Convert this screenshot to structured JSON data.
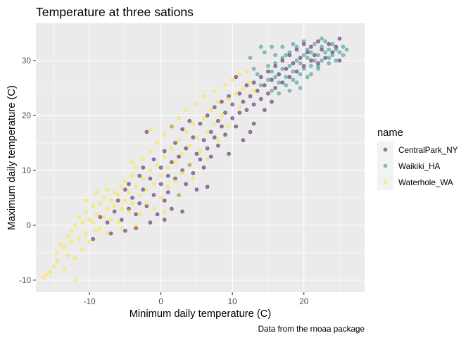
{
  "chart_data": {
    "type": "scatter",
    "title": "Temperature at three sations",
    "xlabel": "Minimum daily temperature (C)",
    "ylabel": "Maximum daily temperature (C)",
    "caption": "Data from the rnoaa package",
    "xlim": [
      -17.5,
      28.5
    ],
    "ylim": [
      -12.2,
      36.8
    ],
    "x_ticks": [
      -10,
      0,
      10,
      20
    ],
    "y_ticks": [
      -10,
      0,
      10,
      20,
      30
    ],
    "grid": true,
    "point_alpha": 0.5,
    "legend": {
      "title": "name",
      "position": "right"
    },
    "series": [
      {
        "name": "CentralPark_NY",
        "color": "#440154",
        "points": [
          [
            -9.5,
            -2.5
          ],
          [
            -8.5,
            1.5
          ],
          [
            -7.5,
            0.5
          ],
          [
            -6.5,
            2.5
          ],
          [
            -6.0,
            4.5
          ],
          [
            -5.5,
            1.0
          ],
          [
            -5.0,
            6.5
          ],
          [
            -4.5,
            3.0
          ],
          [
            -4.5,
            7.5
          ],
          [
            -4.0,
            5.0
          ],
          [
            -3.5,
            2.0
          ],
          [
            -3.0,
            9.0
          ],
          [
            -3.0,
            4.0
          ],
          [
            -2.5,
            6.5
          ],
          [
            -2.0,
            17.0
          ],
          [
            -2.0,
            3.5
          ],
          [
            -1.5,
            8.5
          ],
          [
            -1.0,
            5.5
          ],
          [
            -1.0,
            12.0
          ],
          [
            -0.5,
            2.0
          ],
          [
            0.0,
            7.5
          ],
          [
            0.0,
            10.5
          ],
          [
            0.5,
            4.5
          ],
          [
            0.5,
            13.5
          ],
          [
            1.0,
            9.0
          ],
          [
            1.0,
            6.0
          ],
          [
            1.5,
            11.5
          ],
          [
            1.5,
            3.0
          ],
          [
            2.0,
            8.5
          ],
          [
            2.0,
            15.0
          ],
          [
            2.5,
            5.5
          ],
          [
            2.5,
            12.5
          ],
          [
            3.0,
            10.0
          ],
          [
            3.0,
            17.5
          ],
          [
            3.5,
            7.5
          ],
          [
            3.5,
            14.0
          ],
          [
            4.0,
            11.0
          ],
          [
            4.0,
            19.0
          ],
          [
            4.5,
            9.5
          ],
          [
            4.5,
            16.0
          ],
          [
            5.0,
            13.0
          ],
          [
            5.0,
            6.5
          ],
          [
            5.5,
            18.5
          ],
          [
            5.5,
            12.0
          ],
          [
            6.0,
            15.5
          ],
          [
            6.0,
            10.5
          ],
          [
            6.5,
            20.0
          ],
          [
            6.5,
            14.0
          ],
          [
            7.0,
            17.0
          ],
          [
            7.0,
            12.5
          ],
          [
            7.5,
            21.5
          ],
          [
            7.5,
            16.0
          ],
          [
            8.0,
            19.0
          ],
          [
            8.0,
            14.5
          ],
          [
            8.5,
            22.5
          ],
          [
            8.5,
            18.0
          ],
          [
            9.0,
            20.5
          ],
          [
            9.0,
            16.5
          ],
          [
            9.5,
            23.5
          ],
          [
            10.0,
            19.5
          ],
          [
            10.0,
            22.0
          ],
          [
            10.5,
            18.0
          ],
          [
            11.0,
            24.0
          ],
          [
            11.0,
            20.5
          ],
          [
            11.5,
            22.5
          ],
          [
            12.0,
            25.5
          ],
          [
            12.0,
            21.0
          ],
          [
            12.5,
            23.5
          ],
          [
            13.0,
            26.0
          ],
          [
            13.0,
            22.0
          ],
          [
            13.5,
            24.5
          ],
          [
            14.0,
            27.0
          ],
          [
            14.0,
            23.0
          ],
          [
            14.5,
            25.5
          ],
          [
            15.0,
            28.0
          ],
          [
            15.0,
            24.0
          ],
          [
            15.5,
            26.5
          ],
          [
            16.0,
            29.0
          ],
          [
            16.0,
            25.0
          ],
          [
            16.5,
            27.5
          ],
          [
            17.0,
            30.0
          ],
          [
            17.0,
            26.0
          ],
          [
            17.5,
            28.5
          ],
          [
            18.0,
            31.0
          ],
          [
            18.0,
            27.0
          ],
          [
            18.5,
            29.5
          ],
          [
            19.0,
            32.0
          ],
          [
            19.0,
            28.0
          ],
          [
            19.5,
            30.5
          ],
          [
            20.0,
            33.0
          ],
          [
            20.0,
            29.0
          ],
          [
            20.5,
            31.5
          ],
          [
            21.0,
            32.5
          ],
          [
            21.0,
            30.0
          ],
          [
            21.5,
            31.0
          ],
          [
            22.0,
            33.5
          ],
          [
            22.0,
            29.5
          ],
          [
            22.5,
            32.0
          ],
          [
            23.0,
            30.5
          ],
          [
            23.5,
            33.0
          ],
          [
            24.0,
            31.5
          ],
          [
            24.5,
            32.5
          ],
          [
            25.0,
            34.0
          ],
          [
            25.0,
            30.0
          ],
          [
            -1.5,
            0.5
          ],
          [
            -3.5,
            -0.5
          ],
          [
            -5.0,
            -1.0
          ],
          [
            0.5,
            1.0
          ],
          [
            -2.5,
            10.5
          ],
          [
            -7.0,
            -1.5
          ],
          [
            1.5,
            18.0
          ],
          [
            3.0,
            2.5
          ],
          [
            6.5,
            7.0
          ],
          [
            9.5,
            13.0
          ],
          [
            11.5,
            15.5
          ],
          [
            13.0,
            18.5
          ],
          [
            12.5,
            17.0
          ],
          [
            10.5,
            27.0
          ],
          [
            14.5,
            21.0
          ],
          [
            15.5,
            22.5
          ]
        ]
      },
      {
        "name": "Waikiki_HA",
        "color": "#21908C",
        "points": [
          [
            12.5,
            30.5
          ],
          [
            13.5,
            27.5
          ],
          [
            14.0,
            25.5
          ],
          [
            14.5,
            31.5
          ],
          [
            15.0,
            26.5
          ],
          [
            15.5,
            24.5
          ],
          [
            15.5,
            28.0
          ],
          [
            16.0,
            29.5
          ],
          [
            16.0,
            31.0
          ],
          [
            16.5,
            26.0
          ],
          [
            16.5,
            27.5
          ],
          [
            17.0,
            28.5
          ],
          [
            17.0,
            30.5
          ],
          [
            17.5,
            25.5
          ],
          [
            17.5,
            27.0
          ],
          [
            18.0,
            29.0
          ],
          [
            18.0,
            31.5
          ],
          [
            18.5,
            26.5
          ],
          [
            18.5,
            28.0
          ],
          [
            19.0,
            30.0
          ],
          [
            19.0,
            32.5
          ],
          [
            19.5,
            27.5
          ],
          [
            19.5,
            29.5
          ],
          [
            20.0,
            31.0
          ],
          [
            20.0,
            28.5
          ],
          [
            20.5,
            30.5
          ],
          [
            20.5,
            32.0
          ],
          [
            21.0,
            29.0
          ],
          [
            21.0,
            31.5
          ],
          [
            21.5,
            30.0
          ],
          [
            21.5,
            33.0
          ],
          [
            22.0,
            31.0
          ],
          [
            22.0,
            28.5
          ],
          [
            22.5,
            32.5
          ],
          [
            22.5,
            30.0
          ],
          [
            23.0,
            31.5
          ],
          [
            23.0,
            33.5
          ],
          [
            23.5,
            30.5
          ],
          [
            23.5,
            32.0
          ],
          [
            24.0,
            31.0
          ],
          [
            24.0,
            33.0
          ],
          [
            24.5,
            32.0
          ],
          [
            25.0,
            31.5
          ],
          [
            25.5,
            32.5
          ],
          [
            25.5,
            31.0
          ],
          [
            26.0,
            32.0
          ],
          [
            14.0,
            32.5
          ],
          [
            15.5,
            32.5
          ],
          [
            17.0,
            32.5
          ],
          [
            18.5,
            33.0
          ],
          [
            16.5,
            24.0
          ],
          [
            19.0,
            26.0
          ],
          [
            20.5,
            27.0
          ],
          [
            22.0,
            29.0
          ],
          [
            23.5,
            29.5
          ],
          [
            18.0,
            24.5
          ],
          [
            19.5,
            25.0
          ],
          [
            21.0,
            27.5
          ],
          [
            24.5,
            30.0
          ],
          [
            20.0,
            33.5
          ],
          [
            22.5,
            34.0
          ],
          [
            17.5,
            31.0
          ],
          [
            15.0,
            29.0
          ],
          [
            16.0,
            27.0
          ],
          [
            13.0,
            28.5
          ]
        ]
      },
      {
        "name": "Waterhole_WA",
        "color": "#FDE725",
        "points": [
          [
            -16.5,
            -9.5
          ],
          [
            -16.0,
            -9.0
          ],
          [
            -15.0,
            -7.5
          ],
          [
            -14.5,
            -5.0
          ],
          [
            -14.5,
            -6.5
          ],
          [
            -14.0,
            -3.5
          ],
          [
            -13.5,
            -4.0
          ],
          [
            -13.0,
            -2.0
          ],
          [
            -13.0,
            -5.5
          ],
          [
            -12.5,
            -1.0
          ],
          [
            -12.5,
            -3.0
          ],
          [
            -12.0,
            0.0
          ],
          [
            -12.0,
            -6.0
          ],
          [
            -11.5,
            -2.5
          ],
          [
            -11.5,
            1.5
          ],
          [
            -11.0,
            -4.5
          ],
          [
            -11.0,
            0.5
          ],
          [
            -10.5,
            -1.5
          ],
          [
            -10.5,
            2.5
          ],
          [
            -10.0,
            -3.0
          ],
          [
            -10.0,
            1.0
          ],
          [
            -9.5,
            0.5
          ],
          [
            -9.5,
            3.5
          ],
          [
            -9.0,
            -1.0
          ],
          [
            -9.0,
            2.0
          ],
          [
            -8.5,
            4.0
          ],
          [
            -8.5,
            -0.5
          ],
          [
            -8.0,
            1.5
          ],
          [
            -8.0,
            5.0
          ],
          [
            -7.5,
            3.0
          ],
          [
            -7.5,
            -1.5
          ],
          [
            -7.0,
            4.5
          ],
          [
            -7.0,
            1.0
          ],
          [
            -6.5,
            6.0
          ],
          [
            -6.5,
            3.5
          ],
          [
            -6.0,
            0.5
          ],
          [
            -6.0,
            5.5
          ],
          [
            -5.5,
            7.0
          ],
          [
            -5.5,
            3.0
          ],
          [
            -5.0,
            4.5
          ],
          [
            -5.0,
            8.0
          ],
          [
            -4.5,
            2.5
          ],
          [
            -4.5,
            6.0
          ],
          [
            -4.0,
            9.0
          ],
          [
            -4.0,
            4.0
          ],
          [
            -3.5,
            7.0
          ],
          [
            -3.5,
            10.5
          ],
          [
            -3.0,
            5.5
          ],
          [
            -3.0,
            2.0
          ],
          [
            -2.5,
            8.5
          ],
          [
            -2.5,
            12.0
          ],
          [
            -2.0,
            6.5
          ],
          [
            -2.0,
            4.0
          ],
          [
            -1.5,
            10.0
          ],
          [
            -1.5,
            13.5
          ],
          [
            -1.0,
            7.5
          ],
          [
            -1.0,
            3.0
          ],
          [
            -0.5,
            11.0
          ],
          [
            -0.5,
            15.0
          ],
          [
            0.0,
            9.0
          ],
          [
            0.0,
            5.0
          ],
          [
            0.5,
            12.5
          ],
          [
            0.5,
            16.5
          ],
          [
            1.0,
            10.5
          ],
          [
            1.0,
            7.0
          ],
          [
            1.5,
            14.0
          ],
          [
            1.5,
            18.0
          ],
          [
            2.0,
            11.5
          ],
          [
            2.0,
            8.0
          ],
          [
            2.5,
            15.5
          ],
          [
            2.5,
            19.5
          ],
          [
            3.0,
            13.0
          ],
          [
            3.0,
            9.5
          ],
          [
            3.5,
            17.0
          ],
          [
            3.5,
            21.0
          ],
          [
            4.0,
            14.5
          ],
          [
            4.0,
            11.0
          ],
          [
            4.5,
            18.5
          ],
          [
            5.0,
            16.0
          ],
          [
            5.0,
            22.0
          ],
          [
            5.5,
            13.5
          ],
          [
            6.0,
            19.5
          ],
          [
            6.0,
            23.5
          ],
          [
            6.5,
            17.0
          ],
          [
            7.0,
            21.0
          ],
          [
            7.5,
            24.5
          ],
          [
            7.5,
            18.5
          ],
          [
            8.0,
            22.5
          ],
          [
            8.5,
            20.0
          ],
          [
            9.0,
            25.5
          ],
          [
            9.5,
            23.0
          ],
          [
            10.0,
            26.5
          ],
          [
            10.5,
            24.0
          ],
          [
            11.0,
            27.5
          ],
          [
            11.5,
            25.0
          ],
          [
            12.0,
            28.0
          ],
          [
            12.5,
            26.0
          ],
          [
            13.0,
            24.5
          ],
          [
            -15.5,
            -8.5
          ],
          [
            -13.5,
            -8.0
          ],
          [
            -12.0,
            -10.0
          ],
          [
            -3.5,
            0.0
          ],
          [
            -5.5,
            -0.5
          ],
          [
            -7.5,
            6.5
          ],
          [
            0.5,
            2.5
          ],
          [
            2.5,
            5.5
          ],
          [
            -1.5,
            17.5
          ],
          [
            4.5,
            8.5
          ],
          [
            6.5,
            12.0
          ],
          [
            8.0,
            15.5
          ],
          [
            9.5,
            18.0
          ],
          [
            11.0,
            21.5
          ],
          [
            -9.0,
            6.0
          ],
          [
            -10.5,
            4.5
          ],
          [
            -4.0,
            11.5
          ]
        ]
      }
    ]
  }
}
